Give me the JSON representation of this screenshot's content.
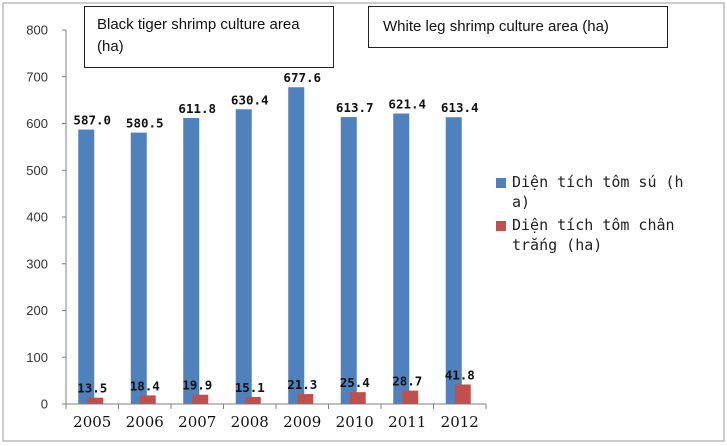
{
  "chart_data": {
    "type": "bar",
    "categories": [
      "2005",
      "2006",
      "2007",
      "2008",
      "2009",
      "2010",
      "2011",
      "2012"
    ],
    "series": [
      {
        "name": "Diện tích tôm sú (ha)",
        "legend_lines": [
          "Diện tích tôm sú (h",
          "a)"
        ],
        "color": "#4f81bd",
        "values": [
          587.0,
          580.5,
          611.8,
          630.4,
          677.6,
          613.7,
          621.4,
          613.4
        ],
        "labels": [
          "587.0",
          "580.5",
          "611.8",
          "630.4",
          "677.6",
          "613.7",
          "621.4",
          "613.4"
        ]
      },
      {
        "name": "Diện tích tôm chân trắng (ha)",
        "legend_lines": [
          "Diện tích tôm chân",
          "trắng (ha)"
        ],
        "color": "#c0504d",
        "values": [
          13.5,
          18.4,
          19.9,
          15.1,
          21.3,
          25.4,
          28.7,
          41.8
        ],
        "labels": [
          "13.5",
          "18.4",
          "19.9",
          "15.1",
          "21.3",
          "25.4",
          "28.7",
          "41.8"
        ]
      }
    ],
    "ylim": [
      0,
      800
    ],
    "yticks": [
      "0",
      "100",
      "200",
      "300",
      "400",
      "500",
      "600",
      "700",
      "800"
    ],
    "grid": false,
    "legend_position": "right",
    "annotations": [
      "Black tiger shrimp culture area (ha)",
      "White leg shrimp culture area (ha)"
    ]
  }
}
